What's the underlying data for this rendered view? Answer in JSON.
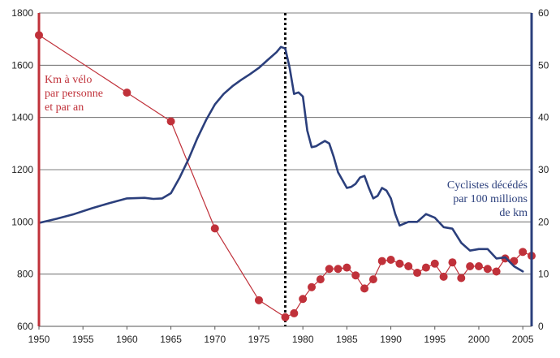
{
  "chart_data": {
    "type": "line",
    "title": "",
    "xlabel": "",
    "ylabel": "",
    "xlim": [
      1950,
      2006
    ],
    "ylim_left": [
      600,
      1800
    ],
    "ylim_right": [
      0,
      60
    ],
    "grid": true,
    "x_ticks": [
      "1950",
      "1955",
      "1960",
      "1965",
      "1970",
      "1975",
      "1980",
      "1985",
      "1990",
      "1995",
      "2000",
      "2005"
    ],
    "y_left_ticks": [
      "600",
      "800",
      "1000",
      "1200",
      "1400",
      "1600",
      "1800"
    ],
    "y_right_ticks": [
      "0",
      "10",
      "20",
      "30",
      "40",
      "50",
      "60"
    ],
    "colors": {
      "km_series": "#c0313a",
      "death_series": "#2b3f7c"
    },
    "vertical_marker_x": 1978,
    "annotations": {
      "left": [
        "Km à vélo",
        "par personne",
        "et par an"
      ],
      "right": [
        "Cyclistes décédés",
        "par 100 millions",
        "de km"
      ]
    },
    "series": [
      {
        "axis": "left",
        "markers": true,
        "x": [
          1950,
          1960,
          1965,
          1970,
          1975,
          1978,
          1979,
          1980,
          1981,
          1982,
          1983,
          1984,
          1985,
          1986,
          1987,
          1988,
          1989,
          1990,
          1991,
          1992,
          1993,
          1994,
          1995,
          1996,
          1997,
          1998,
          1999,
          2000,
          2001,
          2002,
          2003,
          2004,
          2005,
          2006
        ],
        "values": [
          1715,
          1495,
          1385,
          975,
          700,
          635,
          650,
          705,
          750,
          780,
          820,
          820,
          825,
          795,
          745,
          780,
          850,
          855,
          840,
          830,
          805,
          825,
          840,
          790,
          845,
          785,
          830,
          830,
          820,
          810,
          860,
          850,
          885,
          870
        ]
      },
      {
        "axis": "right",
        "markers": false,
        "x": [
          1950,
          1952,
          1954,
          1956,
          1958,
          1960,
          1962,
          1963,
          1964,
          1965,
          1966,
          1967,
          1968,
          1969,
          1970,
          1971,
          1972,
          1973,
          1974,
          1975,
          1976,
          1977,
          1977.5,
          1978,
          1978.5,
          1979,
          1979.5,
          1980,
          1980.5,
          1981,
          1981.5,
          1982,
          1982.5,
          1983,
          1983.5,
          1984,
          1984.5,
          1985,
          1985.5,
          1986,
          1986.5,
          1987,
          1987.5,
          1988,
          1988.5,
          1989,
          1989.5,
          1990,
          1990.5,
          1991,
          1992,
          1993,
          1994,
          1995,
          1996,
          1997,
          1998,
          1999,
          2000,
          2001,
          2002,
          2003,
          2004,
          2005
        ],
        "values": [
          19.8,
          20.6,
          21.5,
          22.6,
          23.6,
          24.5,
          24.6,
          24.4,
          24.5,
          25.5,
          28.5,
          32,
          36,
          39.5,
          42.5,
          44.5,
          46,
          47.2,
          48.3,
          49.5,
          51,
          52.5,
          53.5,
          53.2,
          49.5,
          44.5,
          44.8,
          44,
          37.5,
          34.3,
          34.5,
          35,
          35.5,
          35,
          32.5,
          29.5,
          28,
          26.5,
          26.7,
          27.3,
          28.5,
          28.8,
          26.5,
          24.5,
          25,
          26.5,
          26,
          24.5,
          21.5,
          19.3,
          20,
          20,
          21.5,
          20.8,
          19,
          18.7,
          16,
          14.5,
          14.8,
          14.8,
          13,
          13.2,
          11.5,
          10.5
        ]
      }
    ]
  }
}
